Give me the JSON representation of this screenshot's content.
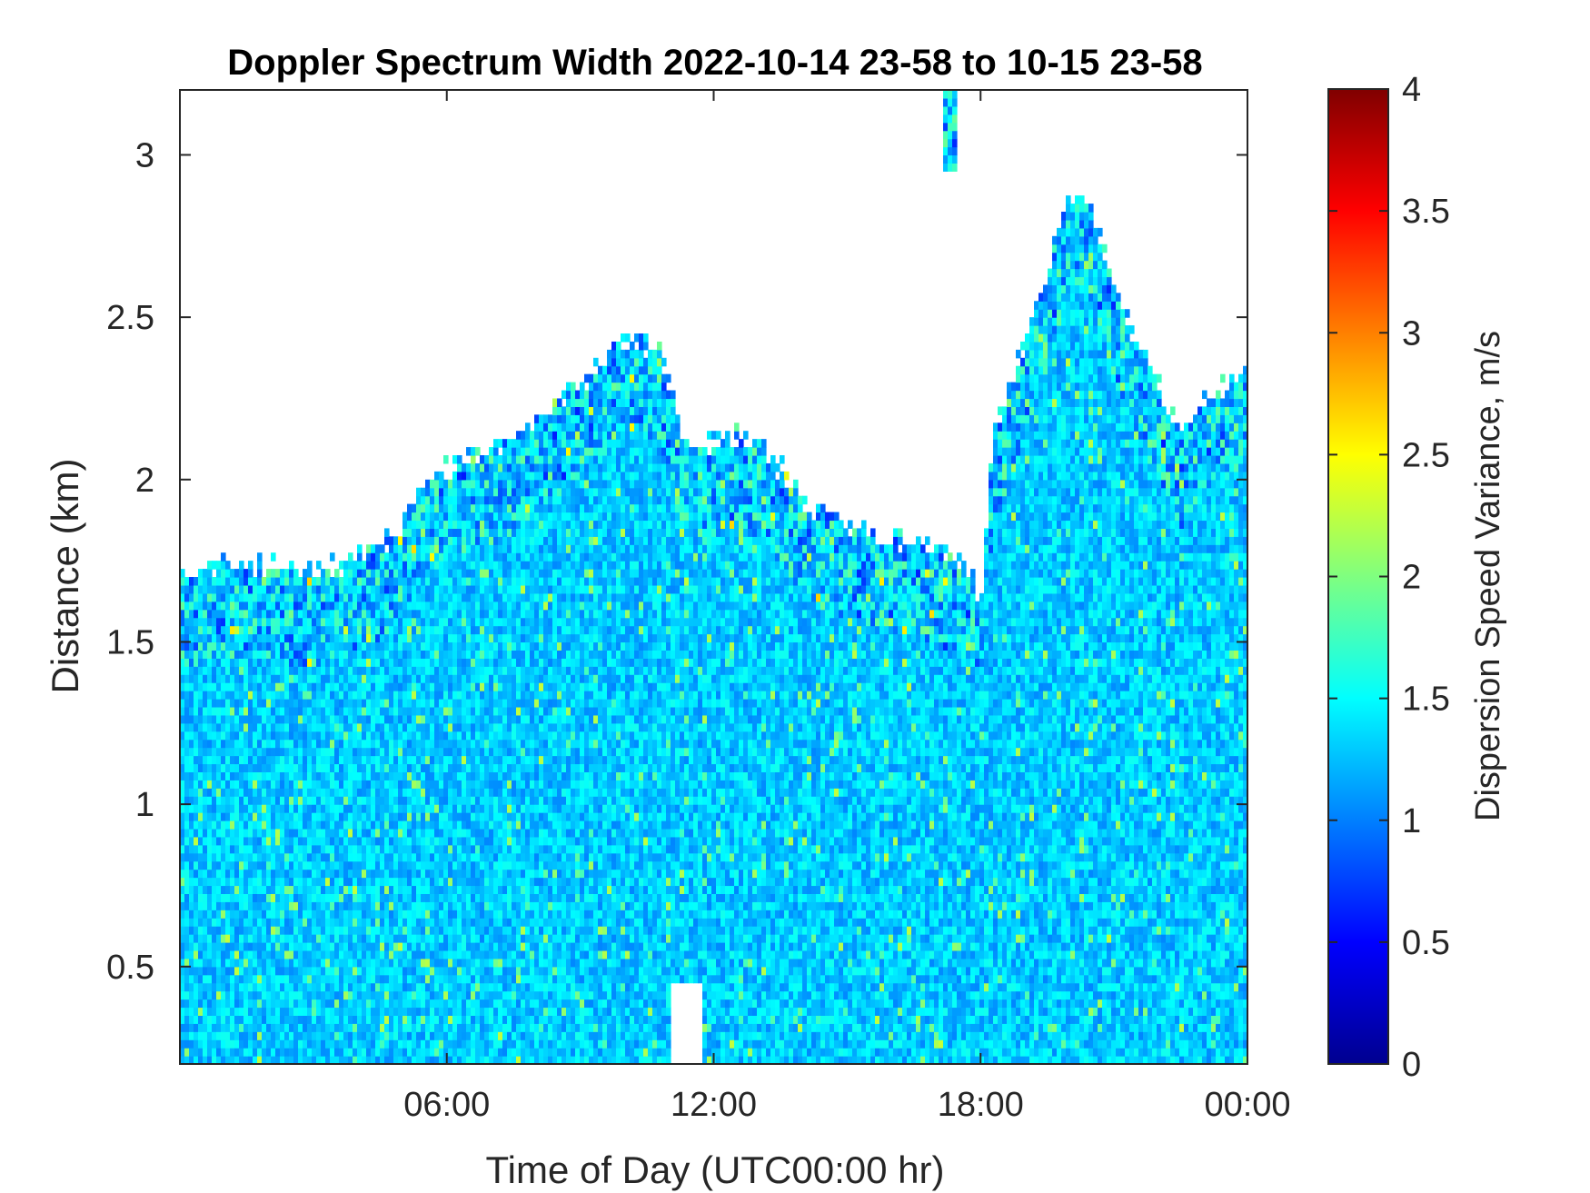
{
  "chart_data": {
    "type": "heatmap",
    "title": "Doppler Spectrum Width 2022-10-14 23-58 to 10-15 23-58",
    "xlabel": "Time of Day (UTC00:00 hr)",
    "ylabel": "Distance (km)",
    "colorbar_label": "Dispersion Speed Variance, m/s",
    "colormap": "jet",
    "xlim_hours": [
      0,
      24
    ],
    "ylim_km": [
      0.2,
      3.2
    ],
    "clim": [
      0,
      4
    ],
    "x_ticks": [
      {
        "hour": 6,
        "label": "06:00"
      },
      {
        "hour": 12,
        "label": "12:00"
      },
      {
        "hour": 18,
        "label": "18:00"
      },
      {
        "hour": 24,
        "label": "00:00"
      }
    ],
    "y_ticks": [
      {
        "value": 0.5,
        "label": "0.5"
      },
      {
        "value": 1,
        "label": "1"
      },
      {
        "value": 1.5,
        "label": "1.5"
      },
      {
        "value": 2,
        "label": "2"
      },
      {
        "value": 2.5,
        "label": "2.5"
      },
      {
        "value": 3,
        "label": "3"
      }
    ],
    "colorbar_ticks": [
      {
        "value": 0,
        "label": "0"
      },
      {
        "value": 0.5,
        "label": "0.5"
      },
      {
        "value": 1,
        "label": "1"
      },
      {
        "value": 1.5,
        "label": "1.5"
      },
      {
        "value": 2,
        "label": "2"
      },
      {
        "value": 2.5,
        "label": "2.5"
      },
      {
        "value": 3,
        "label": "3"
      },
      {
        "value": 3.5,
        "label": "3.5"
      },
      {
        "value": 4,
        "label": "4"
      }
    ],
    "typical_value_m_s": 1.3,
    "signal_top_profile_km": [
      [
        0.0,
        1.68
      ],
      [
        1.0,
        1.7
      ],
      [
        2.0,
        1.69
      ],
      [
        3.0,
        1.68
      ],
      [
        4.0,
        1.72
      ],
      [
        4.8,
        1.78
      ],
      [
        5.5,
        1.95
      ],
      [
        6.0,
        2.0
      ],
      [
        7.0,
        2.05
      ],
      [
        8.0,
        2.15
      ],
      [
        9.0,
        2.25
      ],
      [
        10.0,
        2.4
      ],
      [
        10.8,
        2.35
      ],
      [
        11.3,
        2.1
      ],
      [
        11.7,
        2.05
      ],
      [
        12.5,
        2.1
      ],
      [
        13.2,
        2.05
      ],
      [
        14.0,
        1.9
      ],
      [
        15.0,
        1.82
      ],
      [
        16.0,
        1.78
      ],
      [
        17.0,
        1.75
      ],
      [
        17.8,
        1.68
      ],
      [
        18.0,
        1.6
      ],
      [
        18.3,
        2.1
      ],
      [
        19.0,
        2.4
      ],
      [
        19.5,
        2.6
      ],
      [
        20.0,
        2.85
      ],
      [
        20.5,
        2.8
      ],
      [
        21.0,
        2.55
      ],
      [
        21.5,
        2.4
      ],
      [
        22.0,
        2.25
      ],
      [
        22.5,
        2.1
      ],
      [
        23.0,
        2.2
      ],
      [
        24.0,
        2.3
      ]
    ],
    "gaps": [
      {
        "hour_from": 11.0,
        "hour_to": 11.7,
        "km_from": 0.2,
        "km_to": 0.45
      }
    ],
    "isolated_feature": {
      "hour_from": 17.2,
      "hour_to": 17.5,
      "km_from": 2.95,
      "km_to": 3.2
    }
  }
}
